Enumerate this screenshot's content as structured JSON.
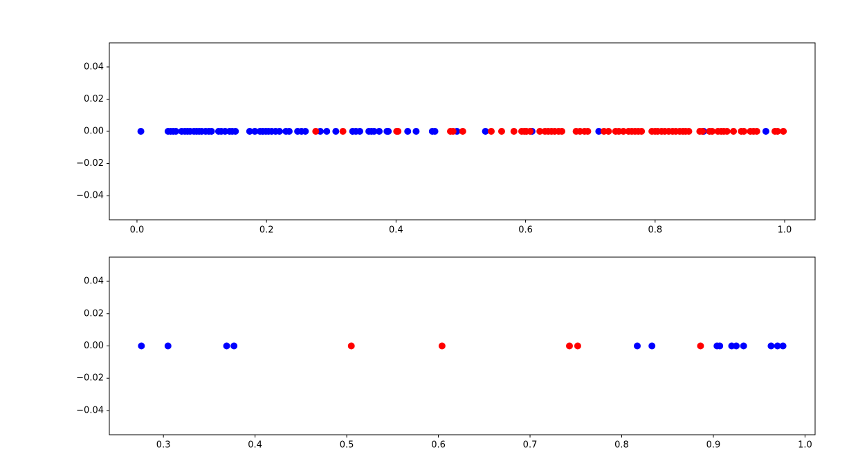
{
  "chart_data": [
    {
      "type": "scatter",
      "xlim": [
        -0.0427,
        1.047
      ],
      "ylim": [
        -0.055,
        0.055
      ],
      "xticks": [
        {
          "value": 0,
          "label": "0.0"
        },
        0.2,
        0.4,
        0.6,
        0.8,
        {
          "value": 1,
          "label": "1.0"
        }
      ],
      "yticks": [
        {
          "value": -0.04,
          "label": "−0.04"
        },
        {
          "value": -0.02,
          "label": "−0.02"
        },
        {
          "value": 0,
          "label": "0.00"
        },
        0.02,
        0.04
      ],
      "series": [
        {
          "color": "#0000ff",
          "x": [
            0.006,
            0.048,
            0.052,
            0.056,
            0.06,
            0.069,
            0.074,
            0.078,
            0.082,
            0.088,
            0.092,
            0.096,
            0.1,
            0.106,
            0.111,
            0.115,
            0.126,
            0.13,
            0.136,
            0.143,
            0.147,
            0.152,
            0.174,
            0.182,
            0.19,
            0.194,
            0.199,
            0.203,
            0.208,
            0.214,
            0.22,
            0.23,
            0.235,
            0.248,
            0.254,
            0.26,
            0.283,
            0.293,
            0.307,
            0.333,
            0.338,
            0.344,
            0.358,
            0.362,
            0.366,
            0.374,
            0.386,
            0.388,
            0.418,
            0.431,
            0.456,
            0.46,
            0.494,
            0.538,
            0.61,
            0.713,
            0.875,
            0.971
          ],
          "values": [
            0,
            0,
            0,
            0,
            0,
            0,
            0,
            0,
            0,
            0,
            0,
            0,
            0,
            0,
            0,
            0,
            0,
            0,
            0,
            0,
            0,
            0,
            0,
            0,
            0,
            0,
            0,
            0,
            0,
            0,
            0,
            0,
            0,
            0,
            0,
            0,
            0,
            0,
            0,
            0,
            0,
            0,
            0,
            0,
            0,
            0,
            0,
            0,
            0,
            0,
            0,
            0,
            0,
            0,
            0,
            0,
            0,
            0
          ]
        },
        {
          "color": "#ff0000",
          "x": [
            0.276,
            0.318,
            0.401,
            0.403,
            0.484,
            0.488,
            0.503,
            0.547,
            0.563,
            0.582,
            0.594,
            0.598,
            0.601,
            0.607,
            0.622,
            0.63,
            0.635,
            0.64,
            0.645,
            0.651,
            0.656,
            0.678,
            0.684,
            0.691,
            0.696,
            0.721,
            0.728,
            0.739,
            0.744,
            0.751,
            0.759,
            0.764,
            0.769,
            0.774,
            0.779,
            0.795,
            0.8,
            0.804,
            0.81,
            0.815,
            0.821,
            0.827,
            0.832,
            0.838,
            0.843,
            0.847,
            0.852,
            0.869,
            0.873,
            0.884,
            0.888,
            0.897,
            0.902,
            0.906,
            0.911,
            0.921,
            0.933,
            0.937,
            0.947,
            0.952,
            0.957,
            0.985,
            0.989,
            0.998
          ],
          "values": [
            0,
            0,
            0,
            0,
            0,
            0,
            0,
            0,
            0,
            0,
            0,
            0,
            0,
            0,
            0,
            0,
            0,
            0,
            0,
            0,
            0,
            0,
            0,
            0,
            0,
            0,
            0,
            0,
            0,
            0,
            0,
            0,
            0,
            0,
            0,
            0,
            0,
            0,
            0,
            0,
            0,
            0,
            0,
            0,
            0,
            0,
            0,
            0,
            0,
            0,
            0,
            0,
            0,
            0,
            0,
            0,
            0,
            0,
            0,
            0,
            0,
            0,
            0,
            0
          ]
        }
      ]
    },
    {
      "type": "scatter",
      "xlim": [
        0.241,
        1.011
      ],
      "ylim": [
        -0.055,
        0.055
      ],
      "xticks": [
        0.3,
        0.4,
        0.5,
        0.6,
        0.7,
        0.8,
        0.9,
        {
          "value": 1,
          "label": "1.0"
        }
      ],
      "yticks": [
        {
          "value": -0.04,
          "label": "−0.04"
        },
        {
          "value": -0.02,
          "label": "−0.02"
        },
        {
          "value": 0,
          "label": "0.00"
        },
        0.02,
        0.04
      ],
      "series": [
        {
          "color": "#0000ff",
          "x": [
            0.276,
            0.305,
            0.369,
            0.377,
            0.817,
            0.833,
            0.904,
            0.907,
            0.92,
            0.925,
            0.933,
            0.963,
            0.97,
            0.976
          ],
          "values": [
            0,
            0,
            0,
            0,
            0,
            0,
            0,
            0,
            0,
            0,
            0,
            0,
            0,
            0
          ]
        },
        {
          "color": "#ff0000",
          "x": [
            0.505,
            0.604,
            0.743,
            0.752,
            0.886
          ],
          "values": [
            0,
            0,
            0,
            0,
            0
          ]
        }
      ]
    }
  ]
}
